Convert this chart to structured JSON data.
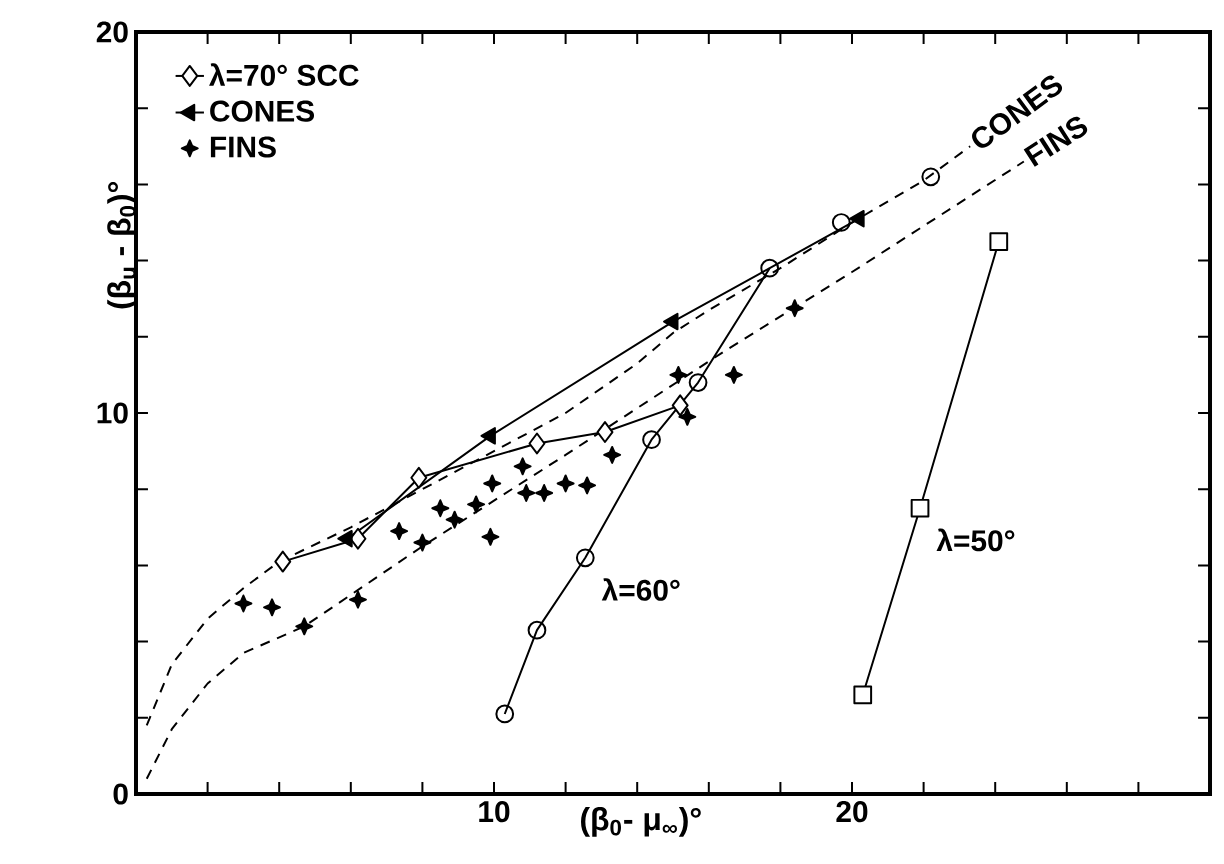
{
  "chart_data": {
    "type": "line",
    "xlabel": "(β$_{0}$- μ$_{∞}$)°",
    "ylabel": "(β$_{u}$ - β$_{0}$)°",
    "xlim": [
      0,
      30
    ],
    "ylim": [
      0,
      20
    ],
    "xticks": [
      {
        "value": 0,
        "label": null
      },
      {
        "value": 2,
        "label": null
      },
      {
        "value": 4,
        "label": null
      },
      {
        "value": 6,
        "label": null
      },
      {
        "value": 8,
        "label": null
      },
      10,
      {
        "value": 12,
        "label": null
      },
      {
        "value": 14,
        "label": null
      },
      {
        "value": 16,
        "label": null
      },
      {
        "value": 18,
        "label": null
      },
      20,
      {
        "value": 22,
        "label": null
      },
      {
        "value": 24,
        "label": null
      },
      {
        "value": 26,
        "label": null
      },
      {
        "value": 28,
        "label": null
      }
    ],
    "yticks": [
      0,
      {
        "value": 2,
        "label": null
      },
      {
        "value": 4,
        "label": null
      },
      {
        "value": 6,
        "label": null
      },
      {
        "value": 8,
        "label": null
      },
      10,
      {
        "value": 12,
        "label": null
      },
      {
        "value": 14,
        "label": null
      },
      {
        "value": 16,
        "label": null
      },
      {
        "value": 18,
        "label": null
      },
      20
    ],
    "grid": false,
    "legend": "top left",
    "series": [
      {
        "name": "λ=70° SCC",
        "marker": "diamond",
        "line_style": "solid",
        "color": "#000000",
        "x": [
          4.1,
          6.2,
          7.9,
          11.2,
          13.1,
          15.2
        ],
        "values": [
          6.1,
          6.7,
          8.3,
          9.2,
          9.5,
          10.2
        ]
      },
      {
        "name": "CONES",
        "marker": "triangle",
        "line_style": "solid",
        "color": "#000000",
        "x": [
          5.9,
          9.9,
          15.0,
          20.2
        ],
        "values": [
          6.7,
          9.4,
          12.4,
          15.1
        ]
      },
      {
        "name": "FINS",
        "type": "scatter",
        "marker": "star",
        "color": "#000000",
        "x": [
          3.0,
          3.8,
          4.7,
          6.2,
          7.35,
          8.0,
          8.5,
          8.9,
          9.5,
          9.9,
          9.95,
          10.8,
          10.9,
          11.4,
          12.0,
          12.6,
          13.3,
          15.15,
          15.4,
          16.7,
          18.4
        ],
        "values": [
          5.0,
          4.9,
          4.4,
          5.1,
          6.9,
          6.6,
          7.5,
          7.2,
          7.6,
          6.75,
          8.15,
          8.6,
          7.9,
          7.9,
          8.15,
          8.1,
          8.9,
          11.0,
          9.9,
          11.0,
          12.75
        ]
      },
      {
        "marker": "circle",
        "line_style": "solid",
        "color": "#000000",
        "x": [
          10.3,
          11.2,
          12.55,
          14.4,
          15.7,
          17.7
        ],
        "values": [
          2.1,
          4.3,
          6.2,
          9.3,
          10.8,
          13.8
        ]
      },
      {
        "type": "scatter",
        "marker": "circle",
        "color": "#000000",
        "x": [
          19.7,
          22.2
        ],
        "values": [
          15.0,
          16.2
        ]
      },
      {
        "marker": "square",
        "line_style": "solid",
        "color": "#000000",
        "x": [
          20.3,
          21.9,
          24.1
        ],
        "values": [
          2.6,
          7.5,
          14.5
        ]
      },
      {
        "marker": "none",
        "line_style": "dashed",
        "color": "#000000",
        "x": [
          0.3,
          1,
          2,
          3,
          4,
          6,
          8,
          10,
          12,
          14,
          15,
          16,
          18,
          20,
          22,
          23.3
        ],
        "values": [
          1.8,
          3.4,
          4.6,
          5.4,
          6.1,
          7.0,
          8.0,
          9.0,
          10.0,
          11.3,
          12.1,
          12.7,
          13.8,
          15.0,
          16.1,
          17.0
        ]
      },
      {
        "marker": "none",
        "line_style": "dashed",
        "color": "#000000",
        "x": [
          0.3,
          1,
          2,
          3,
          4.7,
          8,
          12,
          16.4,
          20,
          24.8
        ],
        "values": [
          0.4,
          1.7,
          2.9,
          3.7,
          4.4,
          6.5,
          8.9,
          11.6,
          13.7,
          16.6
        ]
      }
    ],
    "annotations": [
      {
        "text": "CONES",
        "x": 23.3,
        "y": 17.0
      },
      {
        "text": "FINS",
        "x": 24.8,
        "y": 16.6
      },
      {
        "text": "λ=60°",
        "x": 12.55,
        "y": 6.2
      },
      {
        "text": "λ=50°",
        "x": 21.9,
        "y": 7.5
      }
    ]
  }
}
